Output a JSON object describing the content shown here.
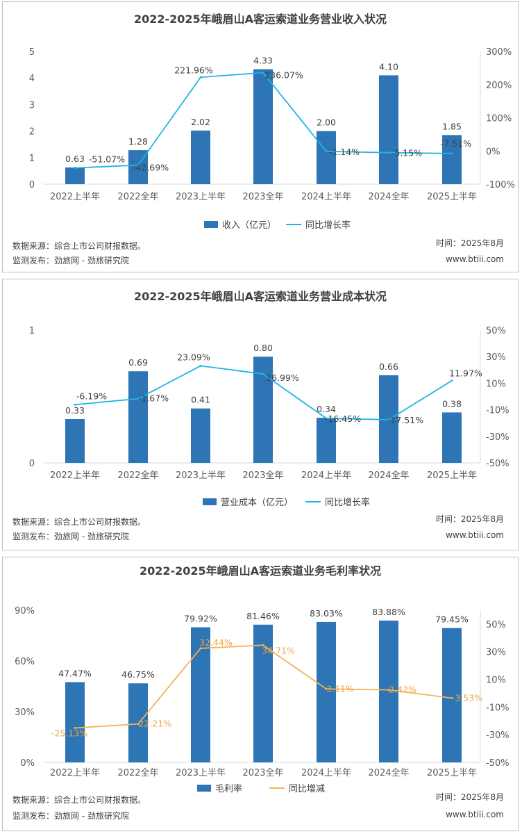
{
  "chart_data": [
    {
      "type": "bar",
      "title": "2022-2025年峨眉山A客运索道业务营业收入状况",
      "categories": [
        "2022上半年",
        "2022全年",
        "2023上半年",
        "2023全年",
        "2024上半年",
        "2024全年",
        "2025上半年"
      ],
      "series": [
        {
          "name": "收入（亿元）",
          "kind": "bar",
          "axis": "left",
          "values": [
            0.63,
            1.28,
            2.02,
            4.33,
            2.0,
            4.1,
            1.85
          ],
          "labels": [
            "0.63",
            "1.28",
            "2.02",
            "4.33",
            "2.00",
            "4.10",
            "1.85"
          ]
        },
        {
          "name": "同比增长率",
          "kind": "line",
          "axis": "right",
          "values": [
            -51.07,
            -42.69,
            221.96,
            236.07,
            -1.14,
            -5.15,
            -7.51
          ],
          "labels": [
            "-51.07%",
            "-42.69%",
            "221.96%",
            "236.07%",
            "-1.14%",
            "-5.15%",
            "-7.51%"
          ]
        }
      ],
      "left_axis": {
        "range": [
          0,
          5
        ],
        "ticks": [
          "0",
          "1",
          "2",
          "3",
          "4",
          "5"
        ]
      },
      "right_axis": {
        "range": [
          -100,
          300
        ],
        "ticks": [
          "-100%",
          "0%",
          "100%",
          "200%",
          "300%"
        ]
      },
      "legend_position": "bottom",
      "source": "数据来源：综合上市公司财报数据。",
      "publisher": "监测发布：劲旅网 - 劲旅研究院",
      "time": "时间：2025年8月",
      "site": "www.btiii.com",
      "colors": {
        "bar": "#2e75b6",
        "line": "#1fb4e6",
        "label": "#404040"
      }
    },
    {
      "type": "bar",
      "title": "2022-2025年峨眉山A客运索道业务营业成本状况",
      "categories": [
        "2022上半年",
        "2022全年",
        "2023上半年",
        "2023全年",
        "2024上半年",
        "2024全年",
        "2025上半年"
      ],
      "series": [
        {
          "name": "营业成本（亿元）",
          "kind": "bar",
          "axis": "left",
          "values": [
            0.33,
            0.69,
            0.41,
            0.8,
            0.34,
            0.66,
            0.38
          ],
          "labels": [
            "0.33",
            "0.69",
            "0.41",
            "0.80",
            "0.34",
            "0.66",
            "0.38"
          ]
        },
        {
          "name": "同比增长率",
          "kind": "line",
          "axis": "right",
          "values": [
            -6.19,
            -1.67,
            23.09,
            16.99,
            -16.45,
            -17.51,
            11.97
          ],
          "labels": [
            "-6.19%",
            "-1.67%",
            "23.09%",
            "16.99%",
            "-16.45%",
            "-17.51%",
            "11.97%"
          ]
        }
      ],
      "left_axis": {
        "range": [
          0,
          1
        ],
        "ticks": [
          "0",
          "1"
        ]
      },
      "right_axis": {
        "range": [
          -50,
          50
        ],
        "ticks": [
          "-50%",
          "-30%",
          "-10%",
          "10%",
          "30%",
          "50%"
        ]
      },
      "legend_position": "bottom",
      "source": "数据来源：综合上市公司财报数据。",
      "publisher": "监测发布：劲旅网 - 劲旅研究院",
      "time": "时间：2025年8月",
      "site": "www.btiii.com",
      "colors": {
        "bar": "#2e75b6",
        "line": "#1fb4e6",
        "label": "#404040"
      }
    },
    {
      "type": "bar",
      "title": "2022-2025年峨眉山A客运索道业务毛利率状况",
      "categories": [
        "2022上半年",
        "2022全年",
        "2023上半年",
        "2023全年",
        "2024上半年",
        "2024全年",
        "2025上半年"
      ],
      "series": [
        {
          "name": "毛利率",
          "kind": "bar",
          "axis": "left",
          "values": [
            47.47,
            46.75,
            79.92,
            81.46,
            83.03,
            83.88,
            79.45
          ],
          "labels": [
            "47.47%",
            "46.75%",
            "79.92%",
            "81.46%",
            "83.03%",
            "83.88%",
            "79.45%"
          ]
        },
        {
          "name": "同比增减",
          "kind": "line",
          "axis": "right",
          "values": [
            -25.13,
            -22.21,
            32.44,
            34.71,
            3.11,
            2.42,
            -3.53
          ],
          "labels": [
            "-25.13%",
            "-22.21%",
            "32.44%",
            "34.71%",
            "3.11%",
            "2.42%",
            "-3.53%"
          ]
        }
      ],
      "left_axis": {
        "range": [
          0,
          90
        ],
        "ticks": [
          "0%",
          "30%",
          "60%",
          "90%"
        ]
      },
      "right_axis": {
        "range": [
          -50,
          60
        ],
        "ticks": [
          "-50%",
          "-30%",
          "-10%",
          "10%",
          "30%",
          "50%"
        ]
      },
      "legend_position": "bottom",
      "source": "数据来源：综合上市公司财报数据。",
      "publisher": "监测发布：劲旅网 - 劲旅研究院",
      "time": "时间：2025年8月",
      "site": "www.btiii.com",
      "colors": {
        "bar": "#2e75b6",
        "line": "#f5b253",
        "label": "#f0a640"
      }
    }
  ]
}
